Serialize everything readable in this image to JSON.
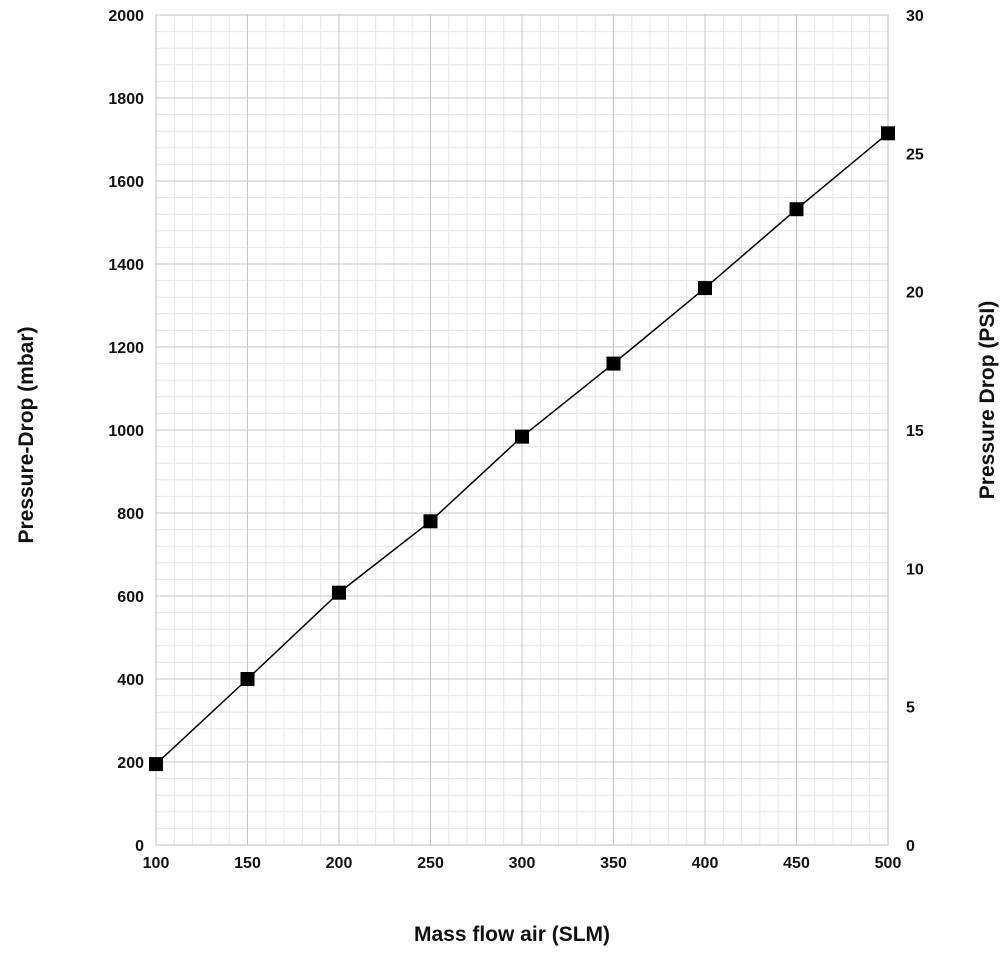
{
  "chart_data": {
    "type": "line",
    "title": "",
    "xlabel": "Mass flow air (SLM)",
    "ylabel": "Pressure-Drop (mbar)",
    "y2label": "Pressure Drop (PSI)",
    "xlim": [
      100,
      500
    ],
    "ylim": [
      0,
      2000
    ],
    "y2lim": [
      0,
      30
    ],
    "x_ticks": [
      "100",
      "150",
      "200",
      "250",
      "300",
      "350",
      "400",
      "450",
      "500"
    ],
    "y_ticks": [
      "0",
      "200",
      "400",
      "600",
      "800",
      "1000",
      "1200",
      "1400",
      "1600",
      "1800",
      "2000"
    ],
    "y2_ticks": [
      "0",
      "5",
      "10",
      "15",
      "20",
      "25",
      "30"
    ],
    "grid": true,
    "marker": "square",
    "line_color": "#000000",
    "series": [
      {
        "x": [
          100,
          150,
          200,
          250,
          300,
          350,
          400,
          450,
          500
        ],
        "values": [
          195,
          400,
          608,
          780,
          984,
          1160,
          1342,
          1532,
          1715
        ]
      }
    ]
  }
}
